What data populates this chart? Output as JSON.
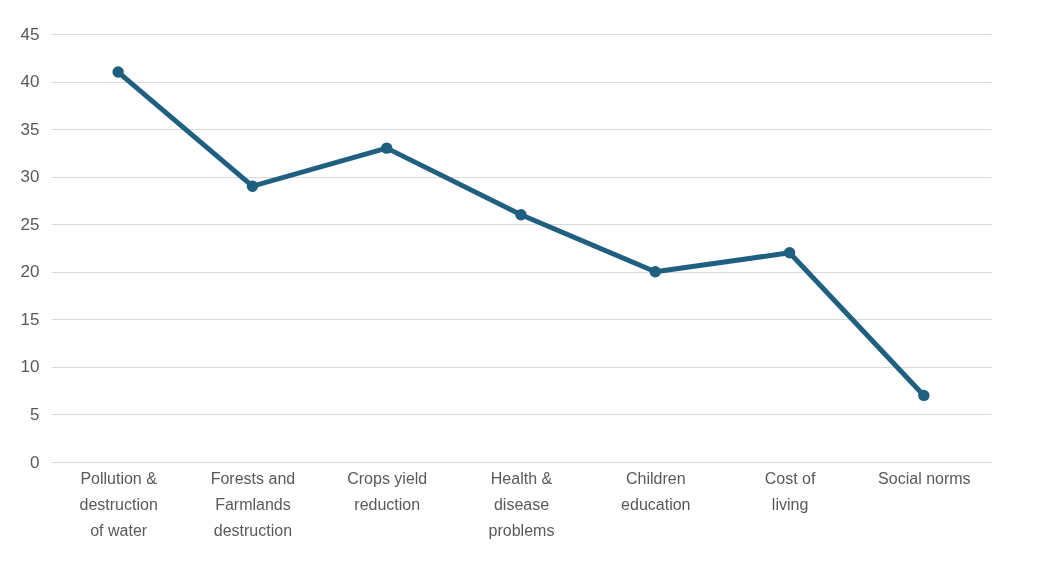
{
  "chart_data": {
    "type": "line",
    "categories": [
      "Pollution & destruction of water",
      "Forests and Farmlands destruction",
      "Crops yield reduction",
      "Health & disease problems",
      "Children education",
      "Cost of living",
      "Social norms"
    ],
    "series": [
      {
        "color": "#1f5f7f",
        "values": [
          41,
          29,
          33,
          26,
          20,
          22,
          7
        ]
      }
    ],
    "ylim": [
      0,
      45
    ],
    "yticks": [
      0,
      5,
      10,
      15,
      20,
      25,
      30,
      35,
      40,
      45
    ],
    "grid": "y",
    "marker": "circle",
    "line_style": "solid"
  }
}
